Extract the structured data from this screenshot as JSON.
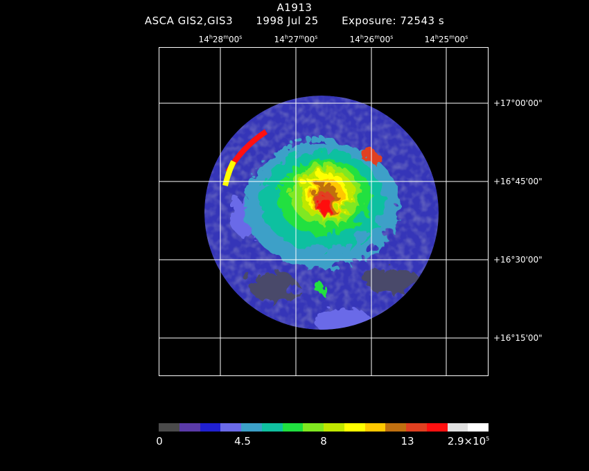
{
  "title": "A1913",
  "subtitle": {
    "instrument": "ASCA GIS2,GIS3",
    "date": "1998 Jul 25",
    "exposure": "Exposure: 72543 s"
  },
  "ra_ticks": [
    {
      "h": "14",
      "m": "28",
      "s": "00"
    },
    {
      "h": "14",
      "m": "27",
      "s": "00"
    },
    {
      "h": "14",
      "m": "26",
      "s": "00"
    },
    {
      "h": "14",
      "m": "25",
      "s": "00"
    }
  ],
  "dec_ticks": [
    "+17°00'00\"",
    "+16°45'00\"",
    "+16°30'00\"",
    "+16°15'00\""
  ],
  "colorbar": {
    "colors": [
      "#4a4a4a",
      "#5a3aa8",
      "#2020d0",
      "#6a6ae8",
      "#3ca0c8",
      "#10c0a0",
      "#20e040",
      "#80e820",
      "#c0e800",
      "#ffff00",
      "#ffc800",
      "#c07010",
      "#e04020",
      "#ff1010",
      "#e0e0e0",
      "#ffffff"
    ],
    "labels": [
      "0",
      "4.5",
      "8",
      "13",
      "2.9×10"
    ],
    "exponent": "5"
  }
}
